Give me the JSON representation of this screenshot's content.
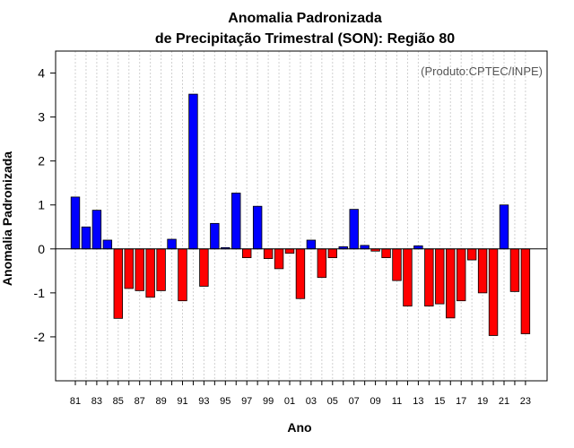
{
  "chart_data": {
    "type": "bar",
    "title_line1": "Anomalia Padronizada",
    "title_line2": "de Precipitação Trimestral (SON): Região 80",
    "xlabel": "Ano",
    "ylabel": "Anomalia Padronizada",
    "credit": "(Produto:CPTEC/INPE)",
    "ylim": [
      -3,
      4.5
    ],
    "yticks": [
      -2,
      -1,
      0,
      1,
      2,
      3,
      4
    ],
    "categories": [
      "81",
      "82",
      "83",
      "84",
      "85",
      "86",
      "87",
      "88",
      "89",
      "90",
      "91",
      "92",
      "93",
      "94",
      "95",
      "96",
      "97",
      "98",
      "99",
      "00",
      "01",
      "02",
      "03",
      "04",
      "05",
      "06",
      "07",
      "08",
      "09",
      "10",
      "11",
      "12",
      "13",
      "14",
      "15",
      "16",
      "17",
      "18",
      "19",
      "20",
      "21",
      "22",
      "23"
    ],
    "xtick_labels": [
      "81",
      "83",
      "85",
      "87",
      "89",
      "91",
      "93",
      "95",
      "97",
      "99",
      "01",
      "03",
      "05",
      "07",
      "09",
      "11",
      "13",
      "15",
      "17",
      "19",
      "21",
      "23"
    ],
    "values": [
      1.18,
      0.5,
      0.88,
      0.2,
      -1.58,
      -0.9,
      -0.95,
      -1.1,
      -0.95,
      0.22,
      -1.18,
      3.52,
      -0.85,
      0.58,
      0.03,
      1.27,
      -0.2,
      0.97,
      -0.22,
      -0.45,
      -0.1,
      -1.13,
      0.2,
      -0.65,
      -0.2,
      0.05,
      0.9,
      0.08,
      -0.05,
      -0.2,
      -0.72,
      -1.3,
      0.07,
      -1.3,
      -1.25,
      -1.57,
      -1.18,
      -0.25,
      -1.0,
      -1.97,
      1.0,
      -0.97,
      -1.93
    ],
    "colors": {
      "positive": "#0000ff",
      "negative": "#ff0000",
      "grid": "#d0d0d0",
      "zero_line": "#000000"
    }
  }
}
